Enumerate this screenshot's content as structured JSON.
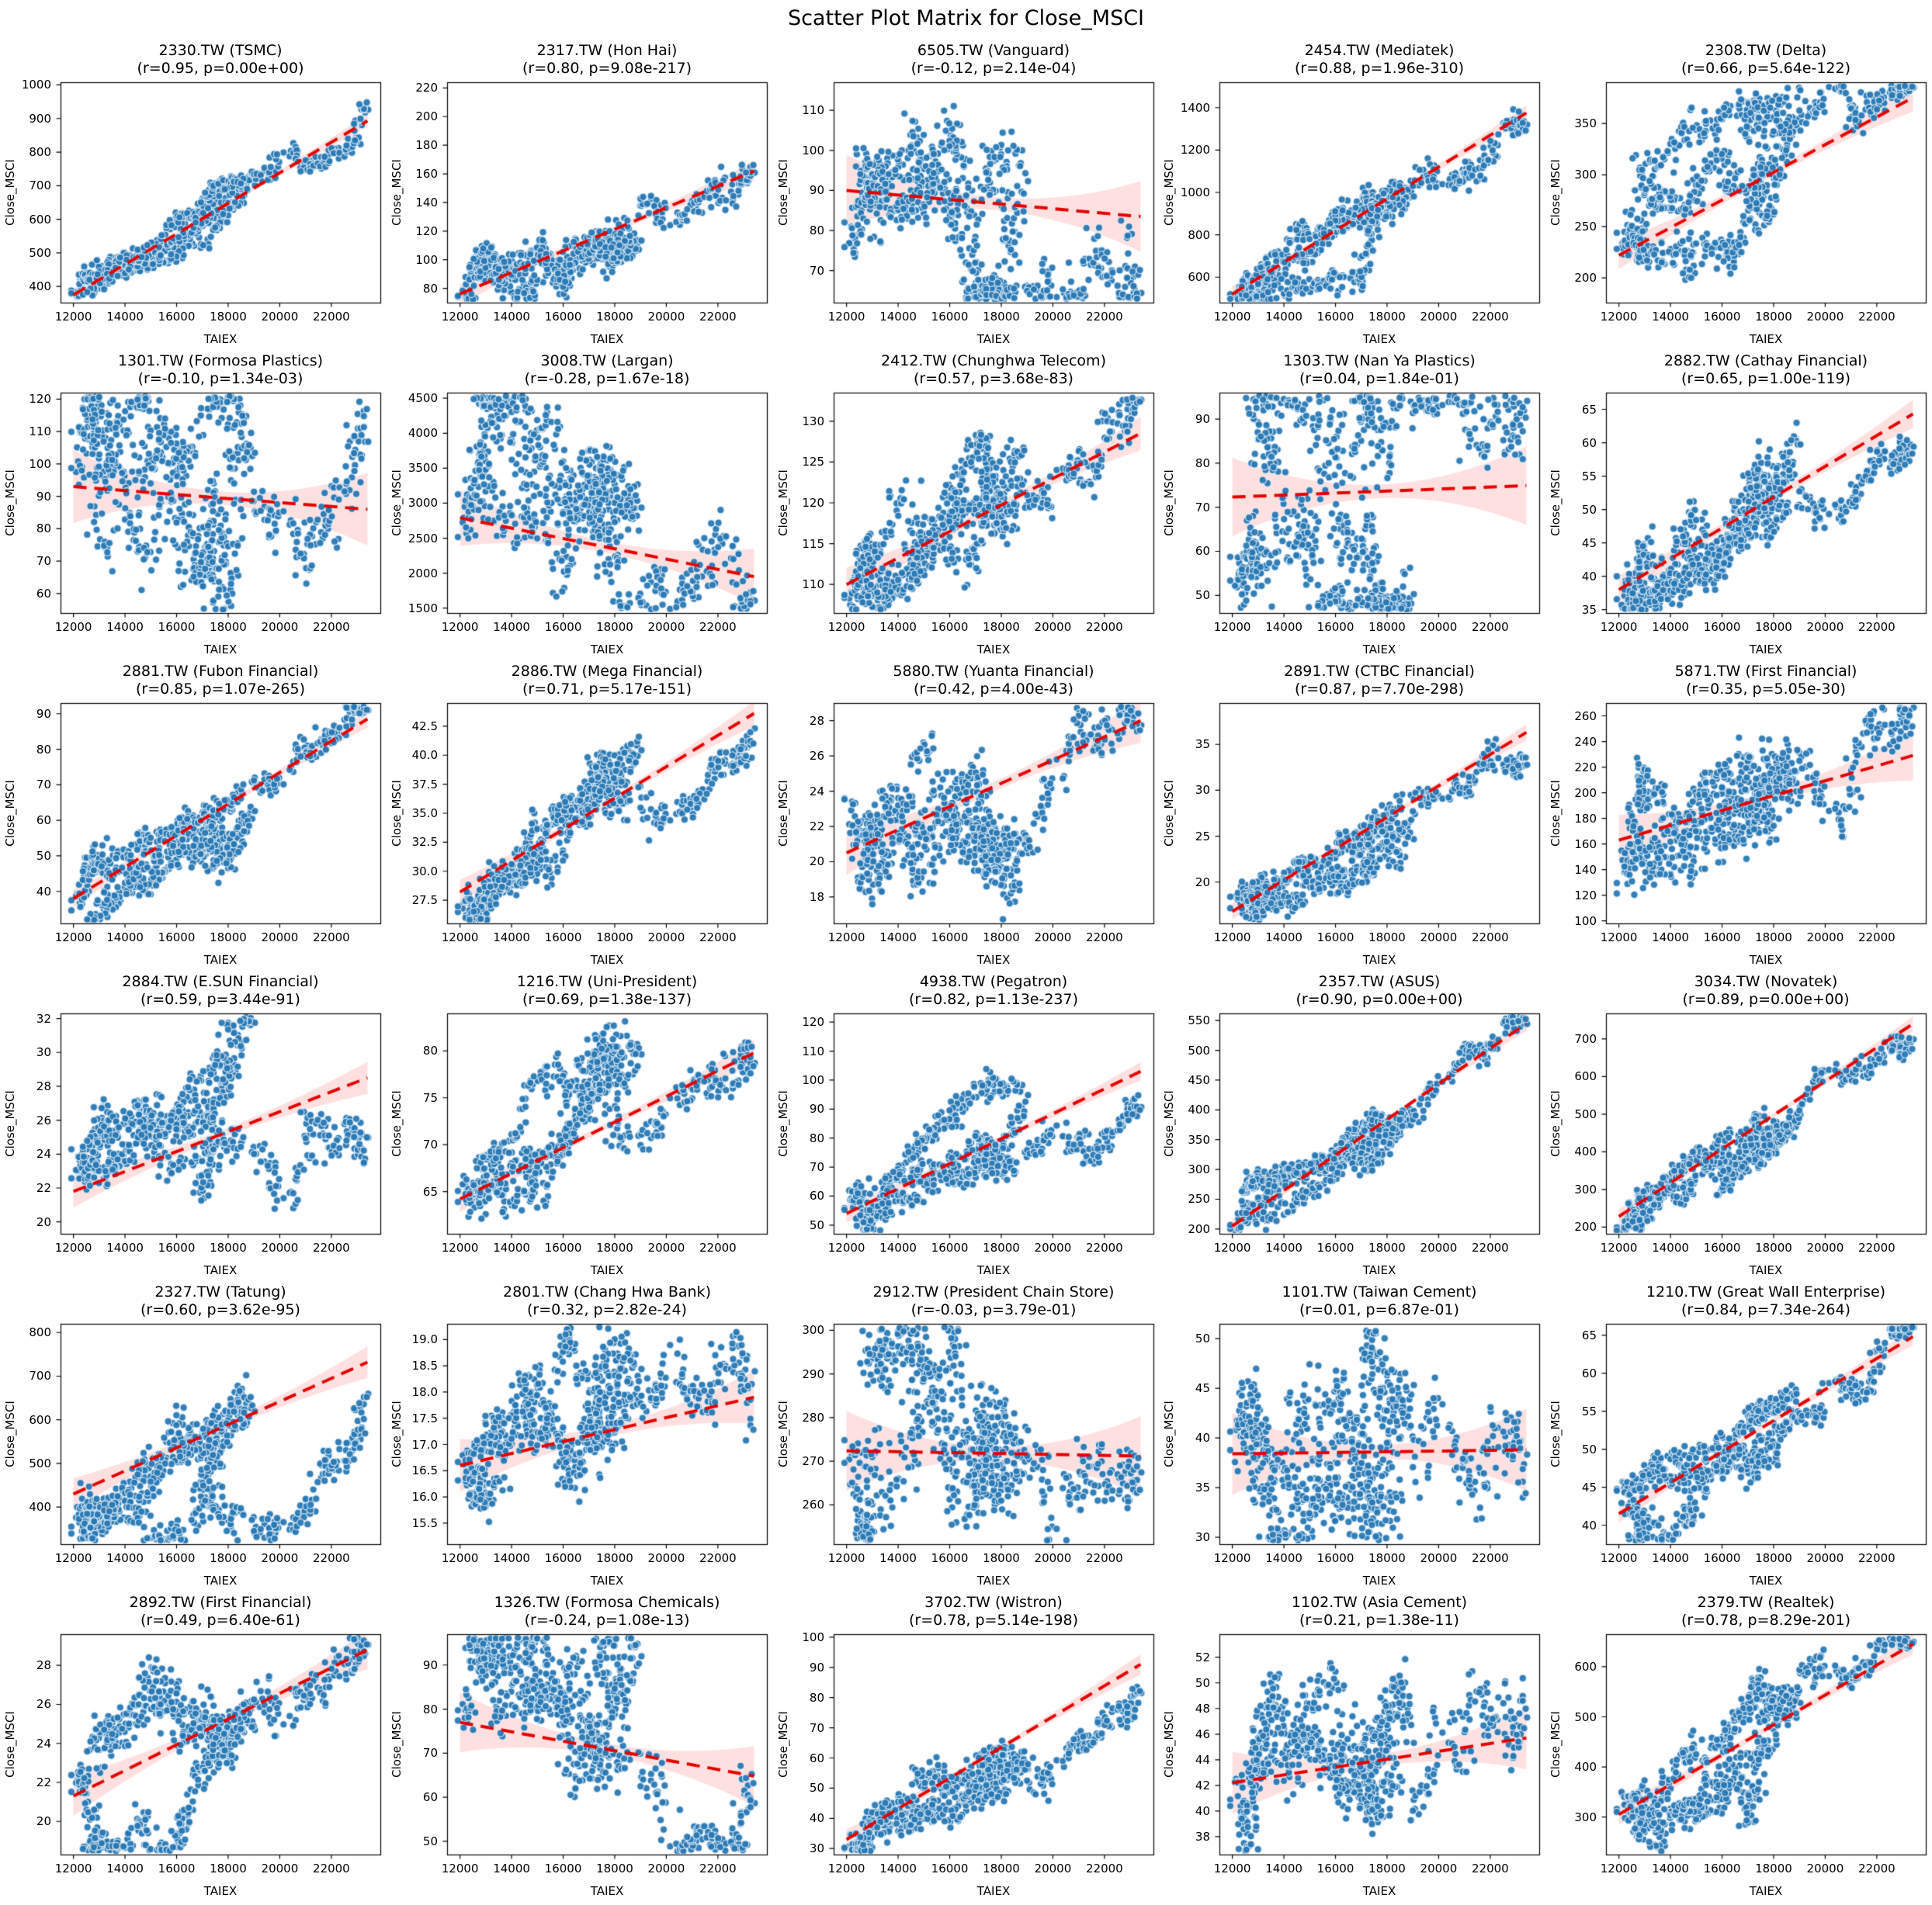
{
  "figure": {
    "title": "Scatter Plot Matrix for Close_MSCI"
  },
  "style": {
    "point_color": "#2878b4",
    "point_edge": "rgba(222,236,247,0.9)",
    "trend_color": "#e60000",
    "band_color": "rgba(255,60,60,0.16)",
    "spine_color": "#000000",
    "text_color": "#000000",
    "background": "#ffffff"
  },
  "axes": {
    "xlabel": "TAIEX",
    "ylabel": "Close_MSCI",
    "xticks": [
      "12000",
      "14000",
      "16000",
      "18000",
      "20000",
      "22000"
    ],
    "xlim": [
      11500,
      23900
    ],
    "x_data_range": [
      12000,
      23400
    ]
  },
  "chart_data": {
    "type": "scatter",
    "title": "Scatter Plot Matrix for Close_MSCI",
    "layout": {
      "rows": 6,
      "cols": 5
    },
    "xlabel": "TAIEX",
    "ylabel": "Close_MSCI",
    "note": "Each panel: daily TAIEX index vs stock Close_MSCI, blue scatter, red dashed OLS trend with confidence band. trend = [y at TAIEX 12000, y at TAIEX 23400].",
    "matrix": [
      {
        "code": "2330.TW",
        "name": "TSMC",
        "title": "2330.TW (TSMC)",
        "subtitle": "(r=0.95, p=0.00e+00)",
        "r": 0.95,
        "p": "0.00e+00",
        "ylim": [
          352,
          1008
        ],
        "trend": [
          375,
          893
        ],
        "yticks": [
          "400",
          "500",
          "600",
          "700",
          "800",
          "900",
          "1000"
        ]
      },
      {
        "code": "2317.TW",
        "name": "Hon Hai",
        "title": "2317.TW (Hon Hai)",
        "subtitle": "(r=0.80, p=9.08e-217)",
        "r": 0.8,
        "p": "9.08e-217",
        "ylim": [
          70,
          224
        ],
        "trend": [
          76,
          162
        ],
        "yticks": [
          "80",
          "100",
          "120",
          "140",
          "160",
          "180",
          "200",
          "220"
        ]
      },
      {
        "code": "6505.TW",
        "name": "Vanguard",
        "title": "6505.TW (Vanguard)",
        "subtitle": "(r=-0.12, p=2.14e-04)",
        "r": -0.12,
        "p": "2.14e-04",
        "ylim": [
          62,
          117
        ],
        "trend": [
          90,
          83.5
        ],
        "yticks": [
          "70",
          "80",
          "90",
          "100",
          "110"
        ]
      },
      {
        "code": "2454.TW",
        "name": "Mediatek",
        "title": "2454.TW (Mediatek)",
        "subtitle": "(r=0.88, p=1.96e-310)",
        "r": 0.88,
        "p": "1.96e-310",
        "ylim": [
          480,
          1520
        ],
        "trend": [
          520,
          1375
        ],
        "yticks": [
          "600",
          "800",
          "1000",
          "1200",
          "1400"
        ]
      },
      {
        "code": "2308.TW",
        "name": "Delta",
        "title": "2308.TW (Delta)",
        "subtitle": "(r=0.66, p=5.64e-122)",
        "r": 0.66,
        "p": "5.64e-122",
        "ylim": [
          176,
          390
        ],
        "trend": [
          222,
          375
        ],
        "yticks": [
          "200",
          "250",
          "300",
          "350"
        ]
      },
      {
        "code": "1301.TW",
        "name": "Formosa Plastics",
        "title": "1301.TW (Formosa Plastics)",
        "subtitle": "(r=-0.10, p=1.34e-03)",
        "r": -0.1,
        "p": "1.34e-03",
        "ylim": [
          54,
          122
        ],
        "trend": [
          93,
          86
        ],
        "yticks": [
          "60",
          "70",
          "80",
          "90",
          "100",
          "110",
          "120"
        ]
      },
      {
        "code": "3008.TW",
        "name": "Largan",
        "title": "3008.TW (Largan)",
        "subtitle": "(r=-0.28, p=1.67e-18)",
        "r": -0.28,
        "p": "1.67e-18",
        "ylim": [
          1430,
          4580
        ],
        "trend": [
          2790,
          1950
        ],
        "yticks": [
          "1500",
          "2000",
          "2500",
          "3000",
          "3500",
          "4000",
          "4500"
        ]
      },
      {
        "code": "2412.TW",
        "name": "Chunghwa Telecom",
        "title": "2412.TW (Chunghwa Telecom)",
        "subtitle": "(r=0.57, p=3.68e-83)",
        "r": 0.57,
        "p": "3.68e-83",
        "ylim": [
          106.5,
          133.5
        ],
        "trend": [
          110,
          128.5
        ],
        "yticks": [
          "110",
          "115",
          "120",
          "125",
          "130"
        ]
      },
      {
        "code": "1303.TW",
        "name": "Nan Ya Plastics",
        "title": "1303.TW (Nan Ya Plastics)",
        "subtitle": "(r=0.04, p=1.84e-01)",
        "r": 0.04,
        "p": "1.84e-01",
        "ylim": [
          46,
          96
        ],
        "trend": [
          72.3,
          74.9
        ],
        "yticks": [
          "50",
          "60",
          "70",
          "80",
          "90"
        ]
      },
      {
        "code": "2882.TW",
        "name": "Cathay Financial",
        "title": "2882.TW (Cathay Financial)",
        "subtitle": "(r=0.65, p=1.00e-119)",
        "r": 0.65,
        "p": "1.00e-119",
        "ylim": [
          34.5,
          67.5
        ],
        "trend": [
          38,
          64.3
        ],
        "yticks": [
          "35",
          "40",
          "45",
          "50",
          "55",
          "60",
          "65"
        ]
      },
      {
        "code": "2881.TW",
        "name": "Fubon Financial",
        "title": "2881.TW (Fubon Financial)",
        "subtitle": "(r=0.85, p=1.07e-265)",
        "r": 0.85,
        "p": "1.07e-265",
        "ylim": [
          31,
          93
        ],
        "trend": [
          38,
          88.5
        ],
        "yticks": [
          "40",
          "50",
          "60",
          "70",
          "80",
          "90"
        ]
      },
      {
        "code": "2886.TW",
        "name": "Mega Financial",
        "title": "2886.TW (Mega Financial)",
        "subtitle": "(r=0.71, p=5.17e-151)",
        "r": 0.71,
        "p": "5.17e-151",
        "ylim": [
          25.5,
          44.5
        ],
        "trend": [
          28.2,
          43.6
        ],
        "yticks": [
          "27.5",
          "30.0",
          "32.5",
          "35.0",
          "37.5",
          "40.0",
          "42.5"
        ]
      },
      {
        "code": "5880.TW",
        "name": "Yuanta Financial",
        "title": "5880.TW (Yuanta Financial)",
        "subtitle": "(r=0.42, p=4.00e-43)",
        "r": 0.42,
        "p": "4.00e-43",
        "ylim": [
          16.5,
          29
        ],
        "trend": [
          20.5,
          28
        ],
        "yticks": [
          "18",
          "20",
          "22",
          "24",
          "26",
          "28"
        ]
      },
      {
        "code": "2891.TW",
        "name": "CTBC Financial",
        "title": "2891.TW (CTBC Financial)",
        "subtitle": "(r=0.87, p=7.70e-298)",
        "r": 0.87,
        "p": "7.70e-298",
        "ylim": [
          15.5,
          39.5
        ],
        "trend": [
          16.8,
          36.3
        ],
        "yticks": [
          "20",
          "25",
          "30",
          "35"
        ]
      },
      {
        "code": "5871.TW",
        "name": "First Financial",
        "title": "5871.TW (First Financial)",
        "subtitle": "(r=0.35, p=5.05e-30)",
        "r": 0.35,
        "p": "5.05e-30",
        "ylim": [
          98,
          270
        ],
        "trend": [
          163,
          229
        ],
        "yticks": [
          "100",
          "120",
          "140",
          "160",
          "180",
          "200",
          "220",
          "240",
          "260"
        ]
      },
      {
        "code": "2884.TW",
        "name": "E.SUN Financial",
        "title": "2884.TW (E.SUN Financial)",
        "subtitle": "(r=0.59, p=3.44e-91)",
        "r": 0.59,
        "p": "3.44e-91",
        "ylim": [
          19.3,
          32.3
        ],
        "trend": [
          21.8,
          28.5
        ],
        "yticks": [
          "20",
          "22",
          "24",
          "26",
          "28",
          "30",
          "32"
        ]
      },
      {
        "code": "1216.TW",
        "name": "Uni-President",
        "title": "1216.TW (Uni-President)",
        "subtitle": "(r=0.69, p=1.38e-137)",
        "r": 0.69,
        "p": "1.38e-137",
        "ylim": [
          60.5,
          84
        ],
        "trend": [
          64.2,
          79.8
        ],
        "yticks": [
          "65",
          "70",
          "75",
          "80"
        ]
      },
      {
        "code": "4938.TW",
        "name": "Pegatron",
        "title": "4938.TW (Pegatron)",
        "subtitle": "(r=0.82, p=1.13e-237)",
        "r": 0.82,
        "p": "1.13e-237",
        "ylim": [
          47,
          123
        ],
        "trend": [
          54,
          103
        ],
        "yticks": [
          "50",
          "60",
          "70",
          "80",
          "90",
          "100",
          "110",
          "120"
        ]
      },
      {
        "code": "2357.TW",
        "name": "ASUS",
        "title": "2357.TW (ASUS)",
        "subtitle": "(r=0.90, p=0.00e+00)",
        "r": 0.9,
        "p": "0.00e+00",
        "ylim": [
          192,
          562
        ],
        "trend": [
          205,
          545
        ],
        "yticks": [
          "200",
          "250",
          "300",
          "350",
          "400",
          "450",
          "500",
          "550"
        ]
      },
      {
        "code": "3034.TW",
        "name": "Novatek",
        "title": "3034.TW (Novatek)",
        "subtitle": "(r=0.89, p=0.00e+00)",
        "r": 0.89,
        "p": "0.00e+00",
        "ylim": [
          182,
          768
        ],
        "trend": [
          228,
          740
        ],
        "yticks": [
          "200",
          "300",
          "400",
          "500",
          "600",
          "700"
        ]
      },
      {
        "code": "2327.TW",
        "name": "Tatung",
        "title": "2327.TW (Tatung)",
        "subtitle": "(r=0.60, p=3.62e-95)",
        "r": 0.6,
        "p": "3.62e-95",
        "ylim": [
          315,
          820
        ],
        "trend": [
          430,
          732
        ],
        "yticks": [
          "400",
          "500",
          "600",
          "700",
          "800"
        ]
      },
      {
        "code": "2801.TW",
        "name": "Chang Hwa Bank",
        "title": "2801.TW (Chang Hwa Bank)",
        "subtitle": "(r=0.32, p=2.82e-24)",
        "r": 0.32,
        "p": "2.82e-24",
        "ylim": [
          15.1,
          19.3
        ],
        "trend": [
          16.6,
          17.9
        ],
        "yticks": [
          "15.5",
          "16.0",
          "16.5",
          "17.0",
          "17.5",
          "18.0",
          "18.5",
          "19.0"
        ]
      },
      {
        "code": "2912.TW",
        "name": "President Chain Store",
        "title": "2912.TW (President Chain Store)",
        "subtitle": "(r=-0.03, p=3.79e-01)",
        "r": -0.03,
        "p": "3.79e-01",
        "ylim": [
          251,
          301.5
        ],
        "trend": [
          272.4,
          271.2
        ],
        "yticks": [
          "260",
          "270",
          "280",
          "290",
          "300"
        ]
      },
      {
        "code": "1101.TW",
        "name": "Taiwan Cement",
        "title": "1101.TW (Taiwan Cement)",
        "subtitle": "(r=0.01, p=6.87e-01)",
        "r": 0.01,
        "p": "6.87e-01",
        "ylim": [
          29.3,
          51.5
        ],
        "trend": [
          38.4,
          38.8
        ],
        "yticks": [
          "30",
          "35",
          "40",
          "45",
          "50"
        ]
      },
      {
        "code": "1210.TW",
        "name": "Great Wall Enterprise",
        "title": "1210.TW (Great Wall Enterprise)",
        "subtitle": "(r=0.84, p=7.34e-264)",
        "r": 0.84,
        "p": "7.34e-264",
        "ylim": [
          37.5,
          66.5
        ],
        "trend": [
          41.5,
          64.8
        ],
        "yticks": [
          "40",
          "45",
          "50",
          "55",
          "60",
          "65"
        ]
      },
      {
        "code": "2892.TW",
        "name": "First Financial",
        "title": "2892.TW (First Financial)",
        "subtitle": "(r=0.49, p=6.40e-61)",
        "r": 0.49,
        "p": "6.40e-61",
        "ylim": [
          18.3,
          29.6
        ],
        "trend": [
          21.3,
          28.8
        ],
        "yticks": [
          "20",
          "22",
          "24",
          "26",
          "28"
        ]
      },
      {
        "code": "1326.TW",
        "name": "Formosa Chemicals",
        "title": "1326.TW (Formosa Chemicals)",
        "subtitle": "(r=-0.24, p=1.08e-13)",
        "r": -0.24,
        "p": "1.08e-13",
        "ylim": [
          47,
          97
        ],
        "trend": [
          77,
          64.8
        ],
        "yticks": [
          "50",
          "60",
          "70",
          "80",
          "90"
        ]
      },
      {
        "code": "3702.TW",
        "name": "Wistron",
        "title": "3702.TW (Wistron)",
        "subtitle": "(r=0.78, p=5.14e-198)",
        "r": 0.78,
        "p": "5.14e-198",
        "ylim": [
          28,
          101
        ],
        "trend": [
          33,
          91
        ],
        "yticks": [
          "30",
          "40",
          "50",
          "60",
          "70",
          "80",
          "90",
          "100"
        ]
      },
      {
        "code": "1102.TW",
        "name": "Asia Cement",
        "title": "1102.TW (Asia Cement)",
        "subtitle": "(r=0.21, p=1.38e-11)",
        "r": 0.21,
        "p": "1.38e-11",
        "ylim": [
          36.6,
          53.8
        ],
        "trend": [
          42.2,
          45.7
        ],
        "yticks": [
          "38",
          "40",
          "42",
          "44",
          "46",
          "48",
          "50",
          "52"
        ]
      },
      {
        "code": "2379.TW",
        "name": "Realtek",
        "title": "2379.TW (Realtek)",
        "subtitle": "(r=0.78, p=8.29e-201)",
        "r": 0.78,
        "p": "8.29e-201",
        "ylim": [
          225,
          665
        ],
        "trend": [
          305,
          645
        ],
        "yticks": [
          "300",
          "400",
          "500",
          "600"
        ]
      }
    ]
  }
}
